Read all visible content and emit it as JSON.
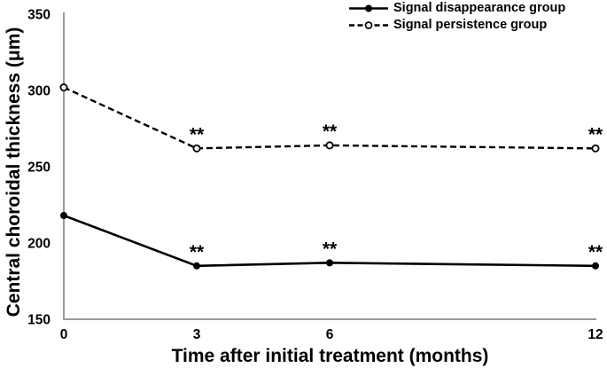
{
  "chart_data": {
    "type": "line",
    "title": "",
    "xlabel": "Time after initial treatment (months)",
    "ylabel": "Central choroidal thickness (μm)",
    "x": [
      0,
      3,
      6,
      12
    ],
    "xticks": [
      "0",
      "3",
      "6",
      "12"
    ],
    "yticks": [
      150,
      200,
      250,
      300,
      350
    ],
    "xlim": [
      0,
      12
    ],
    "ylim": [
      150,
      350
    ],
    "grid": false,
    "legend_position": "top-right",
    "colors": {
      "line": "#000000",
      "axis": "#9a9a9a",
      "background": "#ffffff"
    },
    "series": [
      {
        "name": "Signal disappearance group",
        "line_style": "solid",
        "marker": "filled-circle",
        "values": [
          218,
          185,
          187,
          185
        ],
        "annotations": [
          "",
          "**",
          "**",
          "**"
        ]
      },
      {
        "name": "Signal persistence group",
        "line_style": "dashed",
        "marker": "open-circle",
        "values": [
          302,
          262,
          264,
          262
        ],
        "annotations": [
          "",
          "**",
          "**",
          "**"
        ]
      }
    ]
  }
}
